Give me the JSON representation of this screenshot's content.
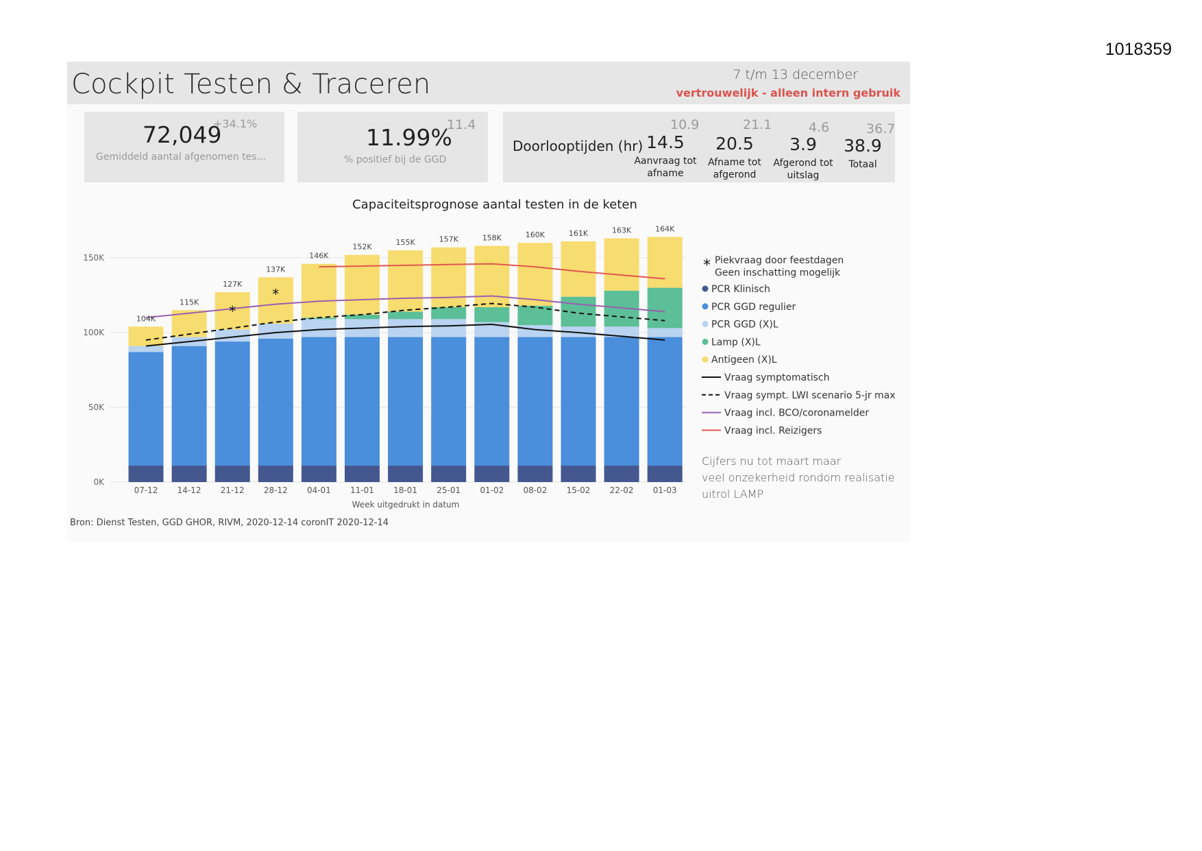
{
  "doc_id": "1018359",
  "header": {
    "title": "Cockpit Testen & Traceren",
    "period": "7 t/m 13 december",
    "confidential": "vertrouwelijk - alleen intern gebruik"
  },
  "kpis": {
    "tests": {
      "value": "72,049",
      "delta": "+34.1%",
      "label": "Gemiddeld aantal afgenomen tes..."
    },
    "positive": {
      "value": "11.99%",
      "previous": "11.4",
      "label": "% positief bij de GGD"
    }
  },
  "doorlooptijden": {
    "title": "Doorlooptijden (hr)",
    "items": [
      {
        "value": "14.5",
        "previous": "10.9",
        "label_line1": "Aanvraag tot",
        "label_line2": "afname"
      },
      {
        "value": "20.5",
        "previous": "21.1",
        "label_line1": "Afname tot",
        "label_line2": "afgerond"
      },
      {
        "value": "3.9",
        "previous": "4.6",
        "label_line1": "Afgerond tot",
        "label_line2": "uitslag"
      },
      {
        "value": "38.9",
        "previous": "36.7",
        "label_line1": "Totaal",
        "label_line2": ""
      }
    ]
  },
  "note": "Cijfers nu tot maart maar veel onzekerheid rondom realisatie uitrol LAMP",
  "source": "Bron: Dienst Testen, GGD GHOR, RIVM, 2020-12-14  coronIT 2020-12-14",
  "chart_data": {
    "type": "bar",
    "stacked": true,
    "title": "Capaciteitsprognose aantal testen in de keten",
    "xlabel": "Week uitgedrukt in datum",
    "ylabel": "",
    "ylim": [
      0,
      170000
    ],
    "yticks": [
      0,
      50000,
      100000,
      150000
    ],
    "ytick_labels": [
      "0K",
      "50K",
      "100K",
      "150K"
    ],
    "grid": true,
    "legend_position": "right",
    "categories": [
      "07-12",
      "14-12",
      "21-12",
      "28-12",
      "04-01",
      "11-01",
      "18-01",
      "25-01",
      "01-02",
      "08-02",
      "15-02",
      "22-02",
      "01-03"
    ],
    "totals": [
      "104K",
      "115K",
      "127K",
      "137K",
      "146K",
      "152K",
      "155K",
      "157K",
      "158K",
      "160K",
      "161K",
      "163K",
      "164K"
    ],
    "peak_marker_categories": [
      "21-12",
      "28-12"
    ],
    "peak_legend_line1": "Piekvraag door feestdagen",
    "peak_legend_line2": "Geen inschatting mogelijk",
    "series": [
      {
        "name": "PCR Klinisch",
        "kind": "bar",
        "color": "#44588f",
        "values": [
          11000,
          11000,
          11000,
          11000,
          11000,
          11000,
          11000,
          11000,
          11000,
          11000,
          11000,
          11000,
          11000
        ]
      },
      {
        "name": "PCR GGD regulier",
        "kind": "bar",
        "color": "#4a8edc",
        "values": [
          76000,
          80000,
          83000,
          85000,
          86000,
          86000,
          86000,
          86000,
          86000,
          86000,
          86000,
          86000,
          86000
        ]
      },
      {
        "name": "PCR GGD (X)L",
        "kind": "bar",
        "color": "#b9d3f0",
        "values": [
          4000,
          6000,
          8000,
          10000,
          12000,
          12000,
          12000,
          12000,
          10000,
          8000,
          7000,
          7000,
          6000
        ]
      },
      {
        "name": "Lamp (X)L",
        "kind": "bar",
        "color": "#5cbf97",
        "values": [
          0,
          0,
          0,
          0,
          1000,
          3000,
          5000,
          8000,
          10000,
          13000,
          20000,
          24000,
          27000
        ]
      },
      {
        "name": "Antigeen (X)L",
        "kind": "bar",
        "color": "#f7dc6f",
        "values": [
          13000,
          18000,
          25000,
          31000,
          36000,
          40000,
          41000,
          40000,
          41000,
          42000,
          37000,
          35000,
          34000
        ]
      },
      {
        "name": "Vraag symptomatisch",
        "kind": "line",
        "color": "#111111",
        "dash": "",
        "values": [
          91000,
          94000,
          97000,
          100000,
          102000,
          103000,
          104000,
          104500,
          105500,
          102000,
          100000,
          97500,
          95000
        ]
      },
      {
        "name": "Vraag sympt. LWI scenario 5-jr max",
        "kind": "line",
        "color": "#111111",
        "dash": "7,5",
        "values": [
          95000,
          99000,
          103000,
          107000,
          110000,
          112000,
          115000,
          117000,
          119500,
          117000,
          113000,
          110500,
          108000
        ]
      },
      {
        "name": "Vraag incl. BCO/coronamelder",
        "kind": "line",
        "color": "#9b5fb0",
        "dash": "",
        "values": [
          110000,
          113000,
          116000,
          119000,
          121000,
          122000,
          123000,
          123500,
          124500,
          122000,
          119000,
          116500,
          114000
        ]
      },
      {
        "name": "Vraag incl. Reizigers",
        "kind": "line",
        "color": "#e0574f",
        "dash": "",
        "values": [
          null,
          null,
          null,
          null,
          144000,
          144500,
          145000,
          145500,
          146000,
          144000,
          141000,
          138500,
          136000
        ]
      }
    ]
  }
}
